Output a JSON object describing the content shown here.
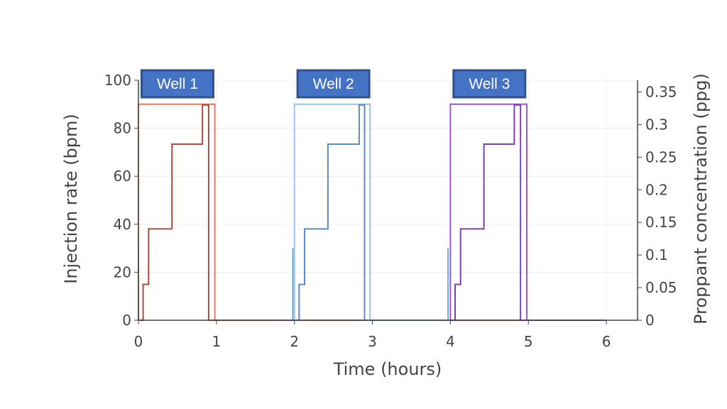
{
  "chart_data": {
    "type": "line",
    "title": "",
    "xlabel": "Time (hours)",
    "ylabel_left": "Injection rate (bpm)",
    "ylabel_right": "Proppant concentration (ppg)",
    "xlim": [
      0,
      6.4
    ],
    "ylim_left": [
      0,
      100
    ],
    "ylim_right": [
      0,
      0.368
    ],
    "x_ticks": [
      0,
      1,
      2,
      3,
      4,
      5,
      6
    ],
    "y_left_ticks": [
      0,
      20,
      40,
      60,
      80,
      100
    ],
    "y_right_ticks": [
      0,
      0.05,
      0.1,
      0.15,
      0.2,
      0.25,
      0.3,
      0.35
    ],
    "grid": true,
    "legend": "none",
    "annotations": [
      {
        "text": "Well 1",
        "x": 0.5
      },
      {
        "text": "Well 2",
        "x": 2.5
      },
      {
        "text": "Well 3",
        "x": 4.5
      }
    ],
    "series": [
      {
        "axis": "left",
        "color": "#e07a6a",
        "x": [
          0,
          0,
          0.98,
          0.98,
          6.0
        ],
        "y": [
          0,
          90,
          90,
          0,
          0
        ]
      },
      {
        "axis": "right",
        "color": "#b14a3c",
        "x": [
          0,
          0.06,
          0.06,
          0.13,
          0.13,
          0.43,
          0.43,
          0.82,
          0.82,
          0.9,
          0.9,
          6.0
        ],
        "y": [
          0,
          0,
          0.055,
          0.055,
          0.14,
          0.14,
          0.27,
          0.27,
          0.33,
          0.33,
          0,
          0
        ]
      },
      {
        "axis": "left",
        "color": "#9ec0e8",
        "x": [
          2.0,
          2.0,
          2.97,
          2.97
        ],
        "y": [
          0,
          90,
          90,
          0
        ]
      },
      {
        "axis": "right",
        "color": "#5b8ac8",
        "x": [
          2.0,
          2.06,
          2.06,
          2.13,
          2.13,
          2.43,
          2.43,
          2.83,
          2.83,
          2.9,
          2.9,
          4.0
        ],
        "y": [
          0,
          0,
          0.055,
          0.055,
          0.14,
          0.14,
          0.27,
          0.27,
          0.33,
          0.33,
          0,
          0
        ]
      },
      {
        "axis": "left",
        "color": "#9b59c7",
        "x": [
          4.0,
          4.0,
          4.98,
          4.98,
          6.0
        ],
        "y": [
          0,
          90,
          90,
          0,
          0
        ]
      },
      {
        "axis": "right",
        "color": "#7e3fb0",
        "x": [
          4.0,
          4.06,
          4.06,
          4.13,
          4.13,
          4.43,
          4.43,
          4.82,
          4.82,
          4.9,
          4.9,
          6.0
        ],
        "y": [
          0,
          0,
          0.055,
          0.055,
          0.14,
          0.14,
          0.27,
          0.27,
          0.33,
          0.33,
          0,
          0
        ]
      },
      {
        "axis": "left",
        "color": "#6aaed6",
        "x": [
          3.97,
          3.97
        ],
        "y": [
          0,
          30
        ]
      },
      {
        "axis": "left",
        "color": "#6aaed6",
        "x": [
          1.98,
          1.98
        ],
        "y": [
          0,
          30
        ]
      },
      {
        "axis": "left",
        "color": "#c26a5e",
        "x": [
          0,
          0
        ],
        "y": [
          0,
          30
        ]
      }
    ],
    "colors": {
      "well_box_fill": "#4472c4",
      "well_box_stroke": "#2f528f",
      "axis": "#444444",
      "grid": "#eeeeee"
    }
  }
}
